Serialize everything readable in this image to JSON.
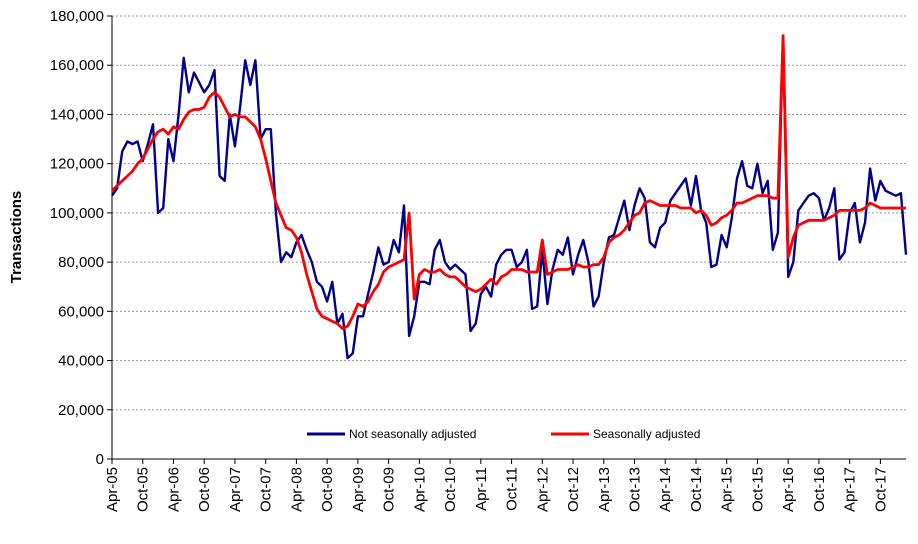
{
  "chart_data": {
    "type": "line",
    "title": "",
    "xlabel": "",
    "ylabel": "Transactions",
    "ylim": [
      0,
      180000
    ],
    "yticks": [
      0,
      20000,
      40000,
      60000,
      80000,
      100000,
      120000,
      140000,
      160000,
      180000
    ],
    "ytick_labels": [
      "0",
      "20,000",
      "40,000",
      "60,000",
      "80,000",
      "100,000",
      "120,000",
      "140,000",
      "160,000",
      "180,000"
    ],
    "x_start": "Apr-05",
    "x_end": "Feb-18",
    "xtick_labels": [
      "Apr-05",
      "Oct-05",
      "Apr-06",
      "Oct-06",
      "Apr-07",
      "Oct-07",
      "Apr-08",
      "Oct-08",
      "Apr-09",
      "Oct-09",
      "Apr-10",
      "Oct-10",
      "Apr-11",
      "Oct-11",
      "Apr-12",
      "Oct-12",
      "Apr-13",
      "Oct-13",
      "Apr-14",
      "Oct-14",
      "Apr-15",
      "Oct-15",
      "Apr-16",
      "Oct-16",
      "Apr-17",
      "Oct-17"
    ],
    "grid": true,
    "legend_position": "bottom-center",
    "series": [
      {
        "name": "Not seasonally adjusted",
        "color": "#00008B",
        "values": [
          107000,
          110000,
          125000,
          129000,
          128000,
          129000,
          121000,
          128000,
          136000,
          100000,
          102000,
          130000,
          121000,
          140000,
          163000,
          149000,
          157000,
          153000,
          149000,
          152000,
          158000,
          115000,
          113000,
          140000,
          127000,
          143000,
          162000,
          152000,
          162000,
          130000,
          134000,
          134000,
          100000,
          80000,
          84000,
          82000,
          88000,
          91000,
          85000,
          80000,
          72000,
          70000,
          64000,
          72000,
          55000,
          59000,
          41000,
          43000,
          58000,
          58000,
          67000,
          76000,
          86000,
          79000,
          80000,
          89000,
          84000,
          103000,
          50000,
          58000,
          72000,
          72000,
          71000,
          85000,
          89000,
          80000,
          77000,
          79000,
          77000,
          75000,
          52000,
          55000,
          67000,
          70000,
          66000,
          79000,
          83000,
          85000,
          85000,
          78000,
          80000,
          85000,
          61000,
          62000,
          85000,
          63000,
          77000,
          85000,
          83000,
          90000,
          75000,
          83000,
          89000,
          80000,
          62000,
          66000,
          80000,
          90000,
          91000,
          98000,
          105000,
          93000,
          103000,
          110000,
          106000,
          88000,
          86000,
          94000,
          96000,
          105000,
          108000,
          111000,
          114000,
          103000,
          115000,
          101000,
          96000,
          78000,
          79000,
          91000,
          86000,
          98000,
          114000,
          121000,
          111000,
          110000,
          120000,
          108000,
          113000,
          85000,
          92000,
          172000,
          74000,
          80000,
          101000,
          104000,
          107000,
          108000,
          106000,
          97000,
          102000,
          110000,
          81000,
          84000,
          100000,
          104000,
          88000,
          96000,
          118000,
          105000,
          113000,
          109000,
          108000,
          107000,
          108000,
          83000
        ]
      },
      {
        "name": "Seasonally adjusted",
        "color": "#FF0000",
        "values": [
          109000,
          111000,
          113000,
          115000,
          117000,
          120000,
          122000,
          126000,
          130000,
          133000,
          134000,
          132000,
          135000,
          134000,
          138000,
          141000,
          142000,
          142000,
          143000,
          147000,
          149000,
          147000,
          143000,
          139000,
          140000,
          139000,
          139000,
          137000,
          135000,
          130000,
          122000,
          113000,
          104000,
          99000,
          94000,
          93000,
          90000,
          84000,
          75000,
          68000,
          61000,
          58000,
          57000,
          56000,
          55000,
          53000,
          54000,
          58000,
          63000,
          62000,
          64000,
          68000,
          71000,
          76000,
          78000,
          79000,
          80000,
          81000,
          100000,
          65000,
          75000,
          77000,
          76000,
          76000,
          77000,
          75000,
          74000,
          74000,
          72000,
          70000,
          69000,
          68000,
          69000,
          71000,
          73000,
          71000,
          74000,
          75000,
          77000,
          77000,
          77000,
          76000,
          76000,
          76000,
          89000,
          75000,
          76000,
          77000,
          77000,
          77000,
          78000,
          79000,
          78000,
          78000,
          79000,
          79000,
          82000,
          88000,
          90000,
          91000,
          93000,
          96000,
          99000,
          100000,
          104000,
          105000,
          104000,
          103000,
          103000,
          103000,
          103000,
          102000,
          102000,
          102000,
          100000,
          101000,
          99000,
          95000,
          96000,
          98000,
          99000,
          101000,
          104000,
          104000,
          105000,
          106000,
          107000,
          107000,
          107000,
          106000,
          106000,
          172000,
          82000,
          90000,
          95000,
          96000,
          97000,
          97000,
          97000,
          97000,
          98000,
          99000,
          101000,
          101000,
          101000,
          101000,
          101000,
          102000,
          104000,
          103000,
          102000,
          102000,
          102000,
          102000,
          102000,
          102000
        ]
      }
    ]
  }
}
